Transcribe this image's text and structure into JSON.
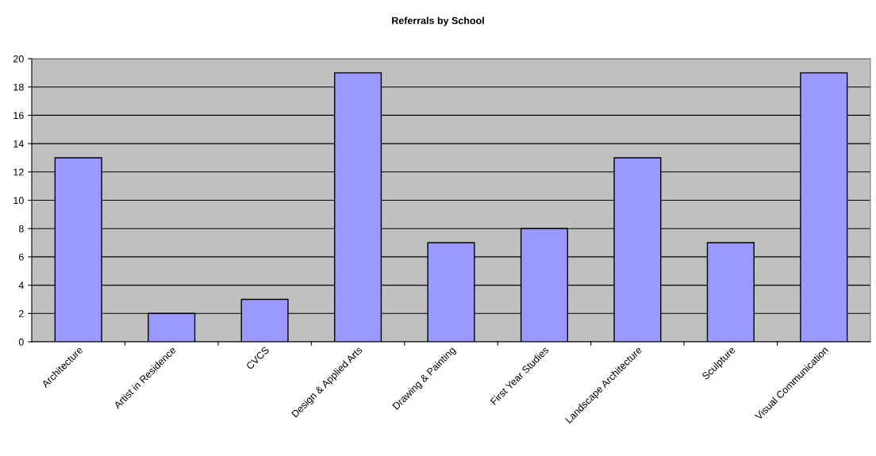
{
  "chart_data": {
    "type": "bar",
    "title": "Referrals by School",
    "categories": [
      "Architecture",
      "Artist in Residence",
      "CVCS",
      "Design & Applied Arts",
      "Drawing & Painting",
      "First Year Studies",
      "Landscape Architecture",
      "Sculpture",
      "Visual Communication"
    ],
    "values": [
      13,
      2,
      3,
      19,
      7,
      8,
      13,
      7,
      19
    ],
    "color": "#9999ff",
    "ylim": [
      0,
      20
    ],
    "yticks": [
      0,
      2,
      4,
      6,
      8,
      10,
      12,
      14,
      16,
      18,
      20
    ],
    "grid": "y"
  }
}
